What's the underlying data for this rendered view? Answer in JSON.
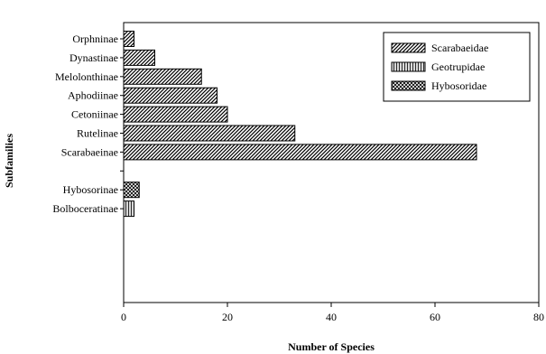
{
  "chart_data": {
    "type": "bar",
    "orientation": "horizontal",
    "title": "",
    "xlabel": "Number of Species",
    "ylabel": "Subfamilies",
    "xlim": [
      0,
      80
    ],
    "xticks": [
      "0",
      "20",
      "40",
      "60",
      "80"
    ],
    "grid": false,
    "legend_position": "top-right",
    "categories": [
      "Orphninae",
      "Dynastinae",
      "Melolonthinae",
      "Aphodiinae",
      "Cetoniinae",
      "Rutelinae",
      "Scarabaeinae",
      "",
      "Hybosorinae",
      "Bolboceratinae"
    ],
    "series": [
      {
        "name": "Scarabaeidae",
        "pattern": "diagonal-hatch",
        "values": [
          2,
          6,
          15,
          18,
          20,
          33,
          68,
          null,
          null,
          null
        ]
      },
      {
        "name": "Geotrupidae",
        "pattern": "vertical-lines",
        "values": [
          null,
          null,
          null,
          null,
          null,
          null,
          null,
          null,
          null,
          2
        ]
      },
      {
        "name": "Hybosoridae",
        "pattern": "crosshatch",
        "values": [
          null,
          null,
          null,
          null,
          null,
          null,
          null,
          null,
          3,
          null
        ]
      }
    ]
  }
}
